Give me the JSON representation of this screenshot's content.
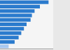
{
  "chart_data": {
    "type": "bar",
    "orientation": "horizontal",
    "categories": [
      null,
      null,
      null,
      null,
      null,
      null,
      null,
      null,
      null,
      null,
      null
    ],
    "values": [
      73,
      60,
      52,
      48,
      46,
      40,
      36,
      32,
      28,
      22,
      13
    ],
    "colors": [
      "#2b7bcd",
      "#2b7bcd",
      "#2b7bcd",
      "#2b7bcd",
      "#2b7bcd",
      "#2b7bcd",
      "#2b7bcd",
      "#2b7bcd",
      "#2b7bcd",
      "#2b7bcd",
      "#a8c8ef"
    ],
    "xlim": [
      0,
      80
    ],
    "tick_labels": false
  }
}
